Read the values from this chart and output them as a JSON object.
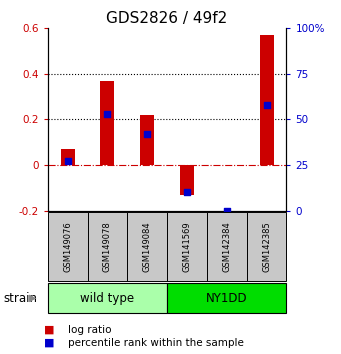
{
  "title": "GDS2826 / 49f2",
  "samples": [
    "GSM149076",
    "GSM149078",
    "GSM149084",
    "GSM141569",
    "GSM142384",
    "GSM142385"
  ],
  "log_ratio": [
    0.07,
    0.37,
    0.22,
    -0.13,
    0.0,
    0.57
  ],
  "percentile_rank": [
    27,
    53,
    42,
    10,
    0,
    58
  ],
  "groups": [
    {
      "label": "wild type",
      "start": 0,
      "end": 3,
      "color": "#AAFFAA"
    },
    {
      "label": "NY1DD",
      "start": 3,
      "end": 6,
      "color": "#00DD00"
    }
  ],
  "bar_color": "#CC0000",
  "dot_color": "#0000CC",
  "left_ylim": [
    -0.2,
    0.6
  ],
  "right_ylim": [
    0,
    100
  ],
  "left_yticks": [
    -0.2,
    0.0,
    0.2,
    0.4,
    0.6
  ],
  "right_yticks": [
    0,
    25,
    50,
    75,
    100
  ],
  "right_yticklabels": [
    "0",
    "25",
    "50",
    "75",
    "100%"
  ],
  "dotted_lines": [
    0.2,
    0.4
  ],
  "bg_color": "#ffffff",
  "title_fontsize": 11,
  "tick_fontsize": 7.5,
  "label_fontsize": 8.5,
  "legend_fontsize": 7.5
}
